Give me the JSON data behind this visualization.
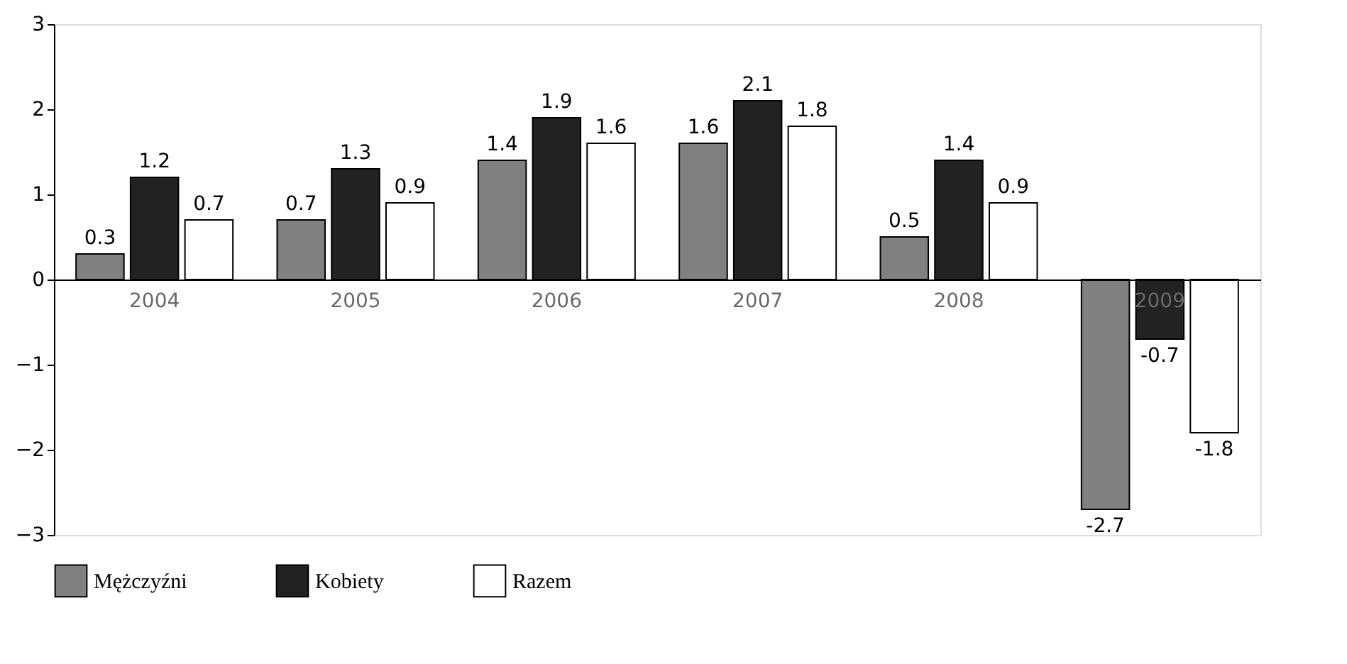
{
  "chart_data": {
    "type": "bar",
    "categories": [
      "2004",
      "2005",
      "2006",
      "2007",
      "2008",
      "2009"
    ],
    "series": [
      {
        "name": "Mężczyźni",
        "color": "#808080",
        "values": [
          0.3,
          0.7,
          1.4,
          1.6,
          0.5,
          -2.7
        ]
      },
      {
        "name": "Kobiety",
        "color": "#222222",
        "values": [
          1.2,
          1.3,
          1.9,
          2.1,
          1.4,
          -0.7
        ]
      },
      {
        "name": "Razem",
        "color": "#ffffff",
        "values": [
          0.7,
          0.9,
          1.6,
          1.8,
          0.9,
          -1.8
        ]
      }
    ],
    "ylim": [
      -3,
      3
    ],
    "yticks": [
      -3,
      -2,
      -1,
      0,
      1,
      2,
      3
    ],
    "data_labels": true,
    "grid": false,
    "legend": "bottom left"
  }
}
